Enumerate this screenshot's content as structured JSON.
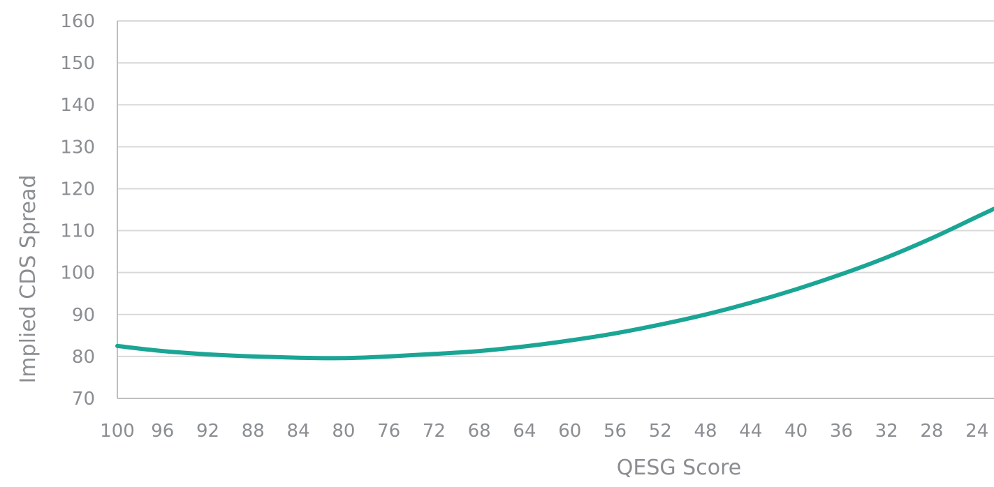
{
  "chart_data": {
    "type": "line",
    "xlabel": "QESG Score",
    "ylabel": "Implied CDS Spread",
    "ylim": [
      70,
      160
    ],
    "xlim": [
      100,
      22.5
    ],
    "x_reversed": true,
    "grid": true,
    "y_ticks": [
      70,
      80,
      90,
      100,
      110,
      120,
      130,
      140,
      150,
      160
    ],
    "x_ticks": [
      100,
      96,
      92,
      88,
      84,
      80,
      76,
      72,
      68,
      64,
      60,
      56,
      52,
      48,
      44,
      40,
      36,
      32,
      28,
      24
    ],
    "line_color": "#1aa595",
    "series": [
      {
        "x": [
          100,
          96,
          92,
          88,
          84,
          80,
          76,
          72,
          68,
          64,
          60,
          56,
          52,
          48,
          44,
          40,
          36,
          32,
          28,
          24,
          22.5
        ],
        "values": [
          82.5,
          81.3,
          80.5,
          80.0,
          79.7,
          79.6,
          80.0,
          80.6,
          81.3,
          82.4,
          83.8,
          85.5,
          87.6,
          90.0,
          92.8,
          96.0,
          99.6,
          103.6,
          108.2,
          113.3,
          115.2
        ]
      }
    ]
  }
}
